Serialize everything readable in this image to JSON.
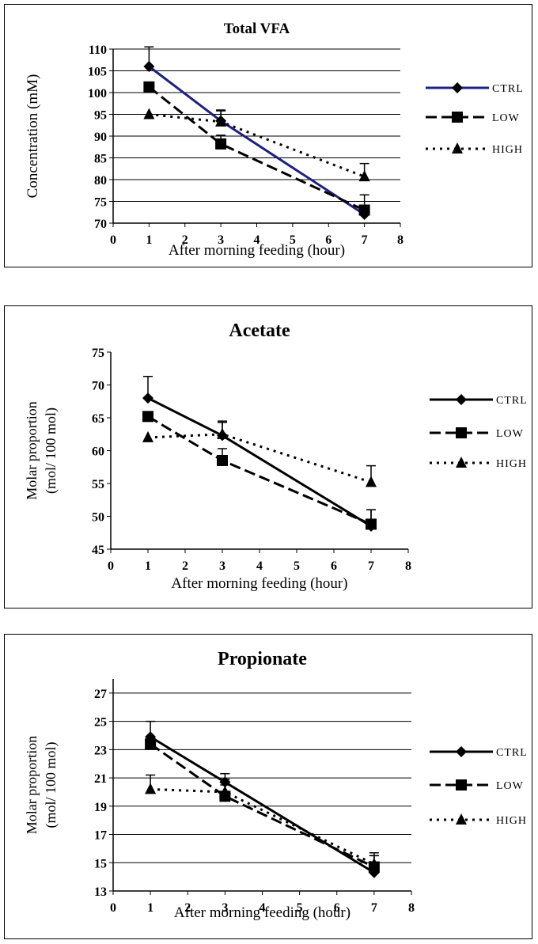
{
  "chart_data": [
    {
      "type": "line",
      "title": "Total VFA",
      "xlabel": "After morning feeding (hour)",
      "ylabel": "Concentration (mM)",
      "xlim": [
        0,
        8
      ],
      "ylim": [
        70,
        110
      ],
      "x_ticks": [
        "0",
        "1",
        "2",
        "3",
        "4",
        "5",
        "6",
        "7",
        "8"
      ],
      "y_ticks": [
        "70",
        "75",
        "80",
        "85",
        "90",
        "95",
        "100",
        "105",
        "110"
      ],
      "grid": "horizontal",
      "legend_position": "right",
      "x": [
        1,
        3,
        7
      ],
      "series": [
        {
          "name": "CTRL",
          "values": [
            106.0,
            93.5,
            72.0
          ],
          "errors": [
            4.5,
            2.5,
            2.0
          ],
          "color": "#1f1f80",
          "dash": "",
          "marker": "diamond"
        },
        {
          "name": "LOW",
          "values": [
            101.3,
            88.2,
            73.0
          ],
          "errors": [
            0,
            2.0,
            3.5
          ],
          "color": "#000000",
          "dash": "14 6",
          "marker": "square"
        },
        {
          "name": "HIGH",
          "values": [
            95.0,
            93.3,
            80.7
          ],
          "errors": [
            0,
            2.5,
            3.0
          ],
          "color": "#000000",
          "dash": "3 6",
          "marker": "triangle"
        }
      ]
    },
    {
      "type": "line",
      "title": "Acetate",
      "xlabel": "After morning feeding (hour)",
      "ylabel": "Molar proportion (mol/ 100 mol)",
      "ylabel_lines": [
        "Molar proportion",
        "(mol/ 100 mol)"
      ],
      "xlim": [
        0,
        8
      ],
      "ylim": [
        45,
        75
      ],
      "x_ticks": [
        "0",
        "1",
        "2",
        "3",
        "4",
        "5",
        "6",
        "7",
        "8"
      ],
      "y_ticks": [
        "45",
        "50",
        "55",
        "60",
        "65",
        "70",
        "75"
      ],
      "grid": "none",
      "legend_position": "right",
      "x": [
        1,
        3,
        7
      ],
      "series": [
        {
          "name": "CTRL",
          "values": [
            68.0,
            62.3,
            48.5
          ],
          "errors": [
            3.3,
            2.0,
            2.5
          ],
          "color": "#000000",
          "dash": "",
          "marker": "diamond"
        },
        {
          "name": "LOW",
          "values": [
            65.2,
            58.5,
            48.8
          ],
          "errors": [
            0,
            1.8,
            2.2
          ],
          "color": "#000000",
          "dash": "14 6",
          "marker": "square"
        },
        {
          "name": "HIGH",
          "values": [
            62.0,
            62.5,
            55.2
          ],
          "errors": [
            0,
            2.0,
            2.5
          ],
          "color": "#000000",
          "dash": "3 6",
          "marker": "triangle"
        }
      ]
    },
    {
      "type": "line",
      "title": "Propionate",
      "xlabel": "After morning feeding (hour)",
      "ylabel": "Molar proportion (mol/ 100 mol)",
      "ylabel_lines": [
        "Molar proportion",
        "(mol/ 100 mol)"
      ],
      "xlim": [
        0,
        8
      ],
      "ylim": [
        13,
        28
      ],
      "x_ticks": [
        "0",
        "1",
        "2",
        "3",
        "4",
        "5",
        "6",
        "7",
        "8"
      ],
      "y_ticks": [
        "13",
        "15",
        "17",
        "19",
        "21",
        "23",
        "25",
        "27"
      ],
      "grid": "horizontal",
      "legend_position": "right",
      "x": [
        1,
        3,
        7
      ],
      "series": [
        {
          "name": "CTRL",
          "values": [
            23.9,
            20.7,
            14.3
          ],
          "errors": [
            1.1,
            0.6,
            1.2
          ],
          "color": "#000000",
          "dash": "",
          "marker": "diamond"
        },
        {
          "name": "LOW",
          "values": [
            23.4,
            19.7,
            14.7
          ],
          "errors": [
            0,
            0.8,
            0.8
          ],
          "color": "#000000",
          "dash": "14 6",
          "marker": "square"
        },
        {
          "name": "HIGH",
          "values": [
            20.2,
            20.0,
            14.9
          ],
          "errors": [
            1.0,
            0.9,
            0.8
          ],
          "color": "#000000",
          "dash": "3 6",
          "marker": "triangle"
        }
      ]
    }
  ]
}
